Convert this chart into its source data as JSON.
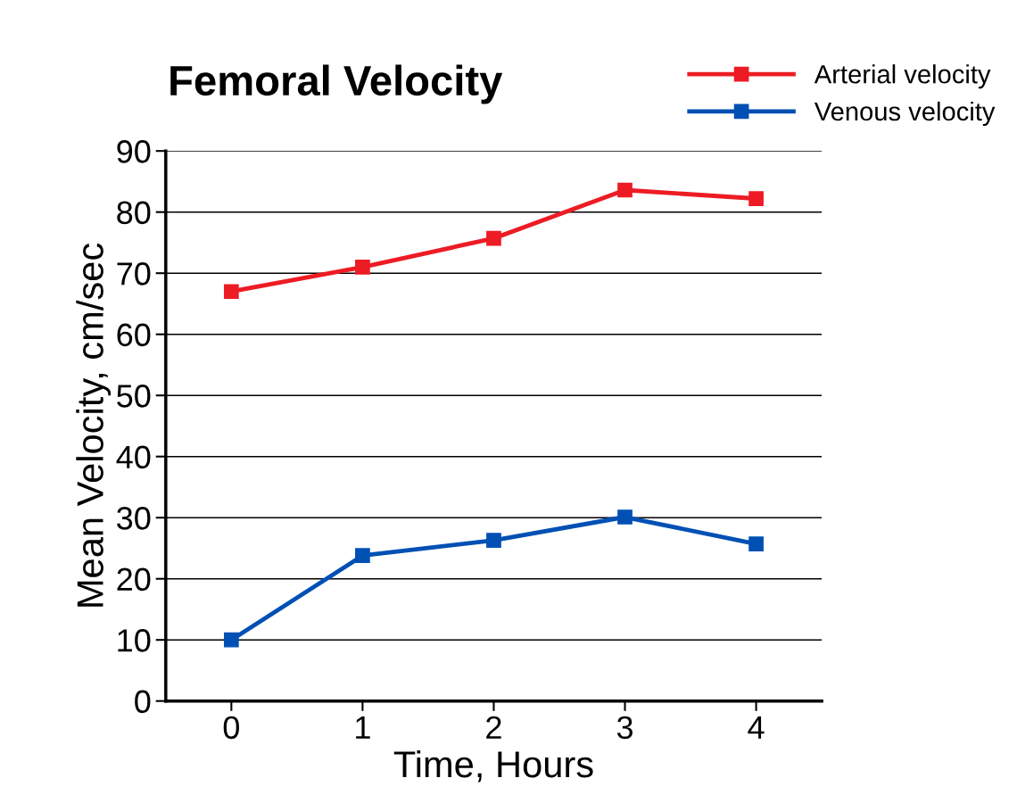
{
  "chart_data": {
    "type": "line",
    "title": "Femoral Velocity",
    "xlabel": "Time, Hours",
    "ylabel": "Mean Velocity, cm/sec",
    "x": [
      0,
      1,
      2,
      3,
      4
    ],
    "series": [
      {
        "name": "Arterial velocity",
        "color": "#ed1c24",
        "values": [
          67,
          71,
          75.7,
          83.6,
          82.2
        ]
      },
      {
        "name": "Venous velocity",
        "color": "#0050b4",
        "values": [
          10,
          23.8,
          26.3,
          30.1,
          25.7
        ]
      }
    ],
    "xlim": [
      -0.5,
      4.5
    ],
    "xticks": [
      0,
      1,
      2,
      3,
      4
    ],
    "ylim": [
      0,
      90
    ],
    "yticks": [
      0,
      10,
      20,
      30,
      40,
      50,
      60,
      70,
      80,
      90
    ],
    "grid": "y",
    "legend": "top right",
    "marker": "square",
    "line_style": "solid"
  }
}
